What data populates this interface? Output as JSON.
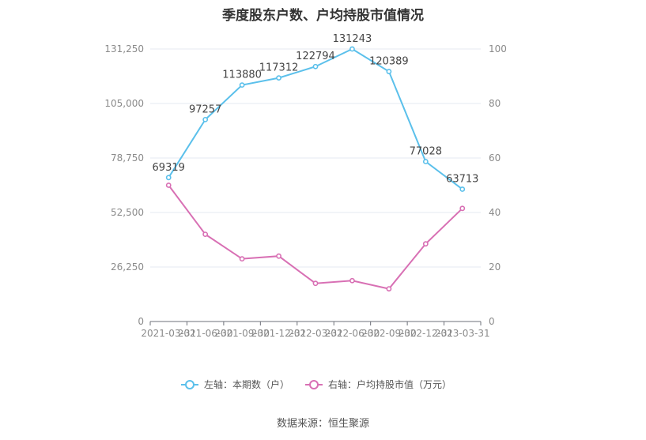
{
  "chart_data": {
    "type": "line",
    "title": "季度股东户数、户均持股市值情况",
    "categories": [
      "2021-03-31",
      "2021-06-30",
      "2021-09-30",
      "2021-12-31",
      "2022-03-31",
      "2022-06-30",
      "2022-09-30",
      "2022-12-31",
      "2023-03-31"
    ],
    "series": [
      {
        "name": "左轴：本期数（户）",
        "axis": "left",
        "color": "#5bc0eb",
        "values": [
          69319,
          97257,
          113880,
          117312,
          122794,
          131243,
          120389,
          77028,
          63713
        ],
        "labels": [
          "69319",
          "97257",
          "113880",
          "117312",
          "122794",
          "131243",
          "120389",
          "77028",
          "63713"
        ]
      },
      {
        "name": "右轴：户均持股市值（万元）",
        "axis": "right",
        "color": "#d870b4",
        "values": [
          50.0,
          32.0,
          23.0,
          24.0,
          14.0,
          15.0,
          12.0,
          28.5,
          41.5
        ]
      }
    ],
    "left_axis": {
      "min": 0,
      "max": 131250,
      "ticks": [
        "0",
        "26,250",
        "52,500",
        "78,750",
        "105,000",
        "131,250"
      ]
    },
    "right_axis": {
      "min": 0,
      "max": 100,
      "ticks": [
        "0",
        "20",
        "40",
        "60",
        "80",
        "100"
      ]
    },
    "grid": true,
    "legend_position": "bottom"
  },
  "source": "数据来源：恒生聚源"
}
